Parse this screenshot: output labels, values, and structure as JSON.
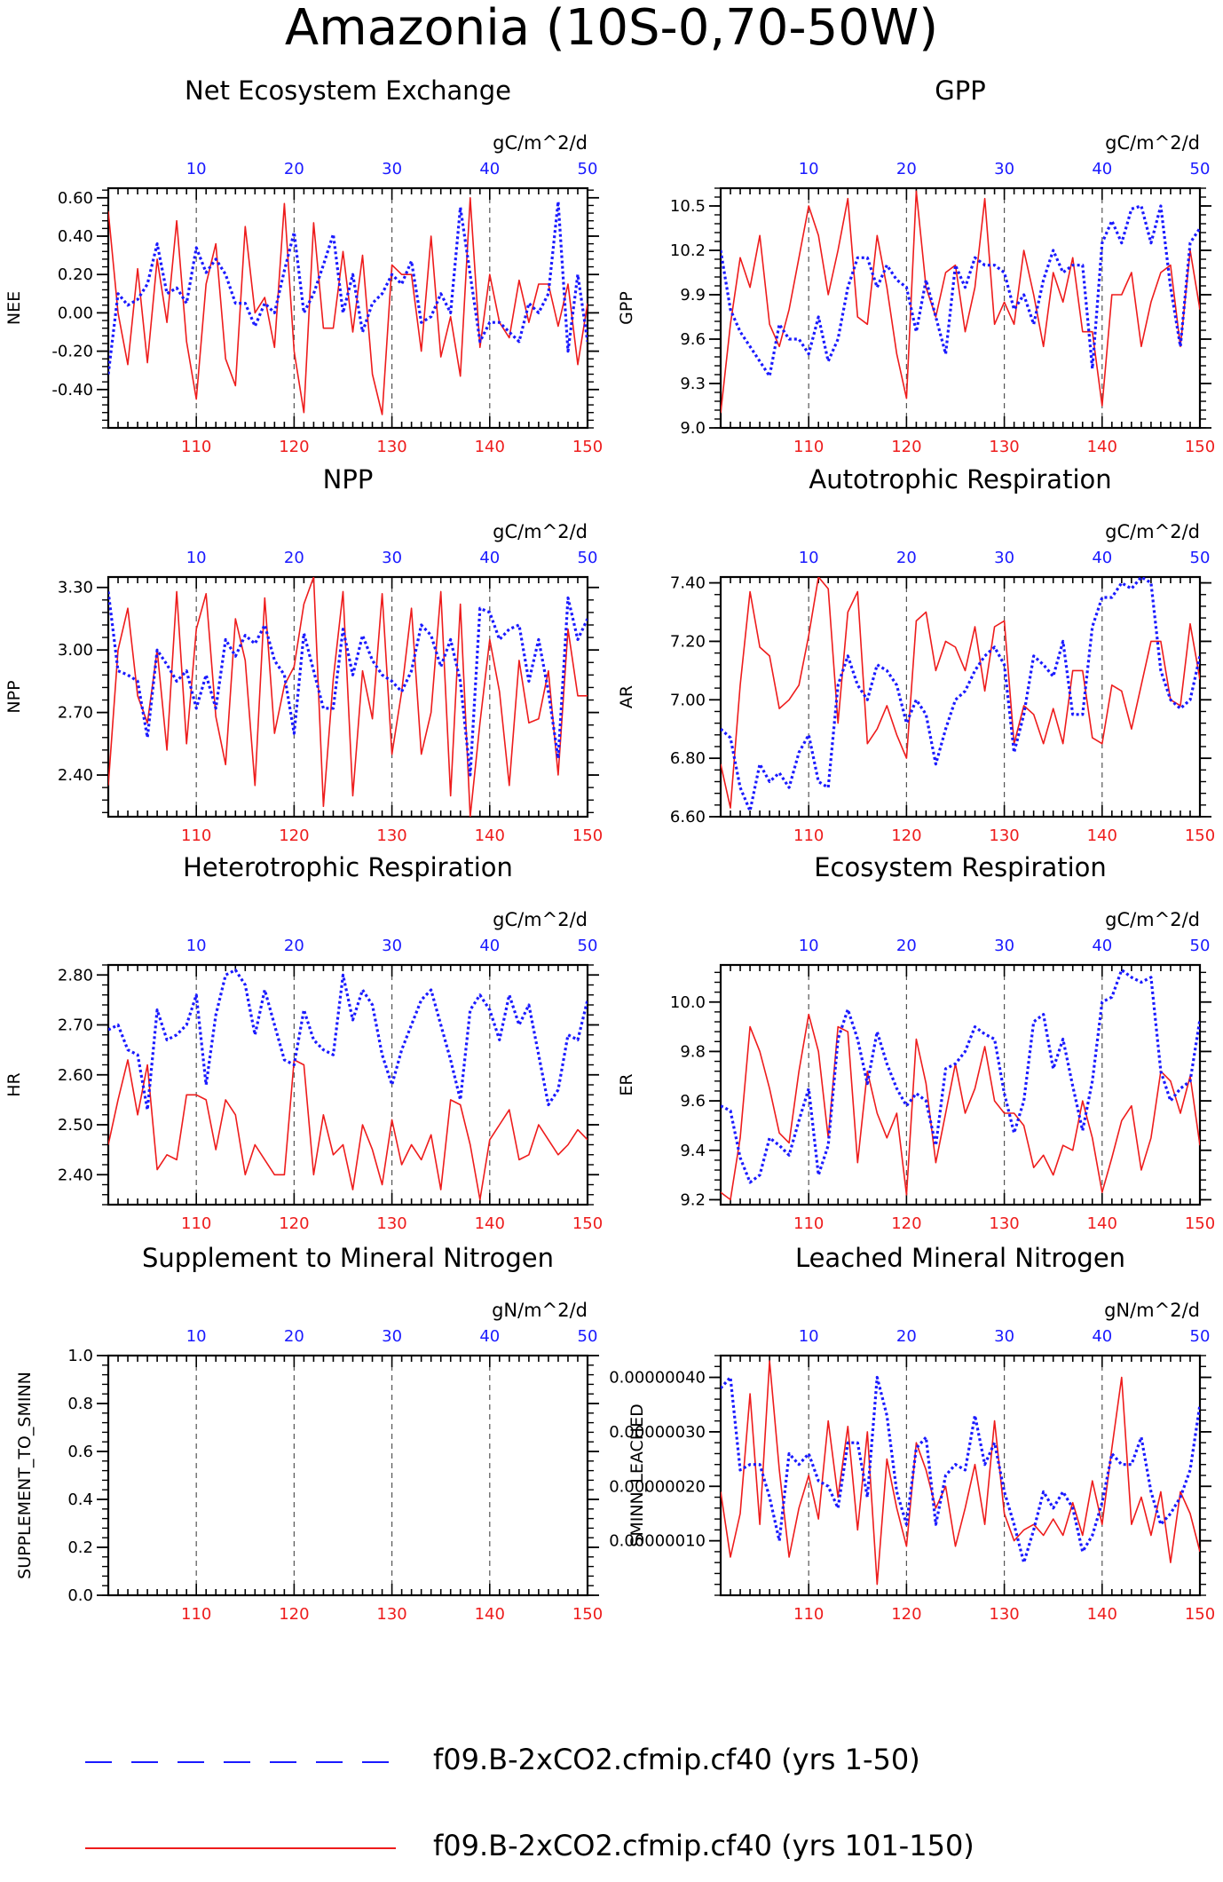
{
  "page_title": "Amazonia (10S-0,70-50W)",
  "colors": {
    "series_a": "#1a1aff",
    "series_b": "#ee1c1c",
    "axis": "#000000",
    "grid": "#555555"
  },
  "legend": {
    "items": [
      {
        "label": "f09.B-2xCO2.cfmip.cf40 (yrs 1-50)",
        "style": "dashed",
        "color": "#1a1aff"
      },
      {
        "label": "f09.B-2xCO2.cfmip.cf40 (yrs 101-150)",
        "style": "solid",
        "color": "#ee1c1c"
      }
    ]
  },
  "chart_data": [
    {
      "type": "line",
      "title": "Net Ecosystem Exchange",
      "ylabel": "NEE",
      "units": "gC/m^2/d",
      "ylim": [
        -0.6,
        0.65
      ],
      "yticks": [
        -0.4,
        -0.2,
        0.0,
        0.2,
        0.4,
        0.6
      ],
      "ytick_labels": [
        "-0.40",
        "-0.20",
        "0.00",
        "0.20",
        "0.40",
        "0.60"
      ],
      "x_bottom_ticks": [
        110,
        120,
        130,
        140,
        150
      ],
      "x_top_ticks": [
        10,
        20,
        30,
        40,
        50
      ],
      "xlim": [
        101,
        150
      ],
      "grid_x": [
        110,
        120,
        130,
        140
      ],
      "series": [
        {
          "values": [
            -0.32,
            0.1,
            0.04,
            0.07,
            0.15,
            0.36,
            0.1,
            0.13,
            0.05,
            0.34,
            0.21,
            0.28,
            0.2,
            0.05,
            0.05,
            -0.07,
            0.05,
            0.0,
            0.22,
            0.42,
            0.0,
            0.1,
            0.25,
            0.41,
            0.0,
            0.2,
            -0.1,
            0.05,
            0.1,
            0.2,
            0.15,
            0.27,
            -0.05,
            -0.02,
            0.1,
            0.0,
            0.55,
            0.2,
            -0.15,
            -0.05,
            -0.05,
            -0.1,
            -0.15,
            0.05,
            0.0,
            0.1,
            0.58,
            -0.2,
            0.2,
            -0.15
          ]
        },
        {
          "values": [
            0.53,
            0.0,
            -0.27,
            0.23,
            -0.26,
            0.28,
            -0.05,
            0.48,
            -0.15,
            -0.45,
            0.15,
            0.36,
            -0.24,
            -0.38,
            0.45,
            0.0,
            0.08,
            -0.18,
            0.57,
            -0.2,
            -0.52,
            0.47,
            -0.08,
            -0.08,
            0.32,
            -0.1,
            0.3,
            -0.32,
            -0.53,
            0.25,
            0.2,
            0.2,
            -0.2,
            0.4,
            -0.23,
            -0.02,
            -0.33,
            0.6,
            -0.18,
            0.2,
            -0.05,
            -0.13,
            0.17,
            -0.05,
            0.15,
            0.15,
            -0.07,
            0.15,
            -0.27,
            0.05
          ]
        }
      ]
    },
    {
      "type": "line",
      "title": "GPP",
      "ylabel": "GPP",
      "units": "gC/m^2/d",
      "ylim": [
        9.0,
        10.62
      ],
      "yticks": [
        9.0,
        9.3,
        9.6,
        9.9,
        10.2,
        10.5
      ],
      "ytick_labels": [
        "9.0",
        "9.3",
        "9.6",
        "9.9",
        "10.2",
        "10.5"
      ],
      "x_bottom_ticks": [
        110,
        120,
        130,
        140,
        150
      ],
      "x_top_ticks": [
        10,
        20,
        30,
        40,
        50
      ],
      "xlim": [
        101,
        150
      ],
      "grid_x": [
        110,
        120,
        130,
        140
      ],
      "series": [
        {
          "values": [
            10.2,
            9.8,
            9.65,
            9.55,
            9.45,
            9.35,
            9.7,
            9.6,
            9.6,
            9.5,
            9.75,
            9.45,
            9.6,
            9.95,
            10.15,
            10.15,
            9.95,
            10.1,
            10.0,
            9.95,
            9.65,
            10.0,
            9.75,
            9.5,
            10.1,
            9.95,
            10.15,
            10.1,
            10.1,
            10.05,
            9.8,
            9.9,
            9.7,
            10.0,
            10.2,
            10.05,
            10.1,
            10.1,
            9.4,
            10.25,
            10.4,
            10.25,
            10.48,
            10.5,
            10.25,
            10.5,
            9.95,
            9.55,
            10.25,
            10.35
          ]
        },
        {
          "values": [
            9.1,
            9.7,
            10.15,
            9.95,
            10.3,
            9.7,
            9.55,
            9.8,
            10.15,
            10.5,
            10.3,
            9.9,
            10.2,
            10.55,
            9.75,
            9.7,
            10.3,
            9.95,
            9.5,
            9.2,
            10.6,
            9.95,
            9.75,
            10.05,
            10.1,
            9.65,
            9.95,
            10.55,
            9.7,
            9.85,
            9.7,
            10.2,
            9.9,
            9.55,
            10.05,
            9.85,
            10.15,
            9.65,
            9.65,
            9.15,
            9.9,
            9.9,
            10.05,
            9.55,
            9.85,
            10.05,
            10.1,
            9.55,
            10.2,
            9.8
          ]
        }
      ]
    },
    {
      "type": "line",
      "title": "NPP",
      "ylabel": "NPP",
      "units": "gC/m^2/d",
      "ylim": [
        2.2,
        3.35
      ],
      "yticks": [
        2.4,
        2.7,
        3.0,
        3.3
      ],
      "ytick_labels": [
        "2.40",
        "2.70",
        "3.00",
        "3.30"
      ],
      "x_bottom_ticks": [
        110,
        120,
        130,
        140,
        150
      ],
      "x_top_ticks": [
        10,
        20,
        30,
        40,
        50
      ],
      "xlim": [
        101,
        150
      ],
      "grid_x": [
        110,
        120,
        130,
        140
      ],
      "series": [
        {
          "values": [
            3.28,
            2.9,
            2.88,
            2.85,
            2.58,
            3.0,
            2.93,
            2.85,
            2.9,
            2.72,
            2.88,
            2.72,
            3.05,
            2.97,
            3.07,
            3.03,
            3.12,
            2.95,
            2.88,
            2.6,
            3.08,
            2.9,
            2.72,
            2.72,
            3.1,
            2.88,
            3.07,
            2.95,
            2.88,
            2.85,
            2.8,
            2.9,
            3.12,
            3.07,
            2.92,
            3.05,
            2.85,
            2.4,
            3.2,
            3.18,
            3.05,
            3.1,
            3.12,
            2.85,
            3.05,
            2.8,
            2.48,
            3.25,
            3.05,
            3.15
          ]
        },
        {
          "values": [
            2.35,
            3.0,
            3.2,
            2.78,
            2.65,
            3.0,
            2.52,
            3.28,
            2.55,
            3.1,
            3.27,
            2.68,
            2.45,
            3.15,
            2.95,
            2.35,
            3.25,
            2.6,
            2.83,
            2.92,
            3.22,
            3.35,
            2.25,
            2.86,
            3.28,
            2.3,
            2.9,
            2.67,
            3.27,
            2.5,
            2.8,
            3.2,
            2.5,
            2.7,
            3.28,
            2.3,
            3.22,
            2.2,
            2.65,
            3.05,
            2.8,
            2.35,
            2.95,
            2.65,
            2.67,
            2.9,
            2.4,
            3.1,
            2.78,
            2.78
          ]
        }
      ]
    },
    {
      "type": "line",
      "title": "Autotrophic Respiration",
      "ylabel": "AR",
      "units": "gC/m^2/d",
      "ylim": [
        6.6,
        7.42
      ],
      "yticks": [
        6.6,
        6.8,
        7.0,
        7.2,
        7.4
      ],
      "ytick_labels": [
        "6.60",
        "6.80",
        "7.00",
        "7.20",
        "7.40"
      ],
      "x_bottom_ticks": [
        110,
        120,
        130,
        140,
        150
      ],
      "x_top_ticks": [
        10,
        20,
        30,
        40,
        50
      ],
      "xlim": [
        101,
        150
      ],
      "grid_x": [
        110,
        120,
        130,
        140
      ],
      "series": [
        {
          "values": [
            6.9,
            6.87,
            6.7,
            6.62,
            6.78,
            6.72,
            6.75,
            6.7,
            6.82,
            6.88,
            6.72,
            6.7,
            7.05,
            7.15,
            7.05,
            7.0,
            7.12,
            7.1,
            7.05,
            6.92,
            7.0,
            6.95,
            6.78,
            6.9,
            7.0,
            7.03,
            7.1,
            7.15,
            7.18,
            7.12,
            6.82,
            6.95,
            7.15,
            7.12,
            7.08,
            7.2,
            6.95,
            6.95,
            7.25,
            7.35,
            7.35,
            7.4,
            7.38,
            7.42,
            7.4,
            7.1,
            7.0,
            6.97,
            7.0,
            7.15
          ]
        },
        {
          "values": [
            6.78,
            6.63,
            7.05,
            7.37,
            7.18,
            7.15,
            6.97,
            7.0,
            7.05,
            7.22,
            7.42,
            7.38,
            6.92,
            7.3,
            7.37,
            6.85,
            6.9,
            6.98,
            6.88,
            6.8,
            7.27,
            7.3,
            7.1,
            7.2,
            7.18,
            7.1,
            7.25,
            7.03,
            7.25,
            7.27,
            6.85,
            6.98,
            6.95,
            6.85,
            6.97,
            6.85,
            7.1,
            7.1,
            6.87,
            6.85,
            7.05,
            7.03,
            6.9,
            7.05,
            7.2,
            7.2,
            7.0,
            6.98,
            7.26,
            7.07
          ]
        }
      ]
    },
    {
      "type": "line",
      "title": "Heterotrophic Respiration",
      "ylabel": "HR",
      "units": "gC/m^2/d",
      "ylim": [
        2.34,
        2.82
      ],
      "yticks": [
        2.4,
        2.5,
        2.6,
        2.7,
        2.8
      ],
      "ytick_labels": [
        "2.40",
        "2.50",
        "2.60",
        "2.70",
        "2.80"
      ],
      "x_bottom_ticks": [
        110,
        120,
        130,
        140,
        150
      ],
      "x_top_ticks": [
        10,
        20,
        30,
        40,
        50
      ],
      "xlim": [
        101,
        150
      ],
      "grid_x": [
        110,
        120,
        130,
        140
      ],
      "series": [
        {
          "values": [
            2.69,
            2.7,
            2.65,
            2.64,
            2.53,
            2.73,
            2.67,
            2.68,
            2.7,
            2.76,
            2.58,
            2.72,
            2.8,
            2.81,
            2.78,
            2.68,
            2.77,
            2.7,
            2.63,
            2.62,
            2.73,
            2.67,
            2.65,
            2.64,
            2.8,
            2.71,
            2.77,
            2.74,
            2.64,
            2.58,
            2.65,
            2.7,
            2.75,
            2.77,
            2.7,
            2.63,
            2.55,
            2.73,
            2.76,
            2.73,
            2.67,
            2.76,
            2.7,
            2.74,
            2.64,
            2.54,
            2.57,
            2.68,
            2.67,
            2.75
          ]
        },
        {
          "values": [
            2.46,
            2.55,
            2.63,
            2.52,
            2.62,
            2.41,
            2.44,
            2.43,
            2.56,
            2.56,
            2.55,
            2.45,
            2.55,
            2.52,
            2.4,
            2.46,
            2.43,
            2.4,
            2.4,
            2.63,
            2.62,
            2.4,
            2.52,
            2.44,
            2.46,
            2.37,
            2.5,
            2.45,
            2.38,
            2.51,
            2.42,
            2.46,
            2.43,
            2.48,
            2.37,
            2.55,
            2.54,
            2.46,
            2.35,
            2.47,
            2.5,
            2.53,
            2.43,
            2.44,
            2.5,
            2.47,
            2.44,
            2.46,
            2.49,
            2.47
          ]
        }
      ]
    },
    {
      "type": "line",
      "title": "Ecosystem Respiration",
      "ylabel": "ER",
      "units": "gC/m^2/d",
      "ylim": [
        9.18,
        10.15
      ],
      "yticks": [
        9.2,
        9.4,
        9.6,
        9.8,
        10.0
      ],
      "ytick_labels": [
        "9.2",
        "9.4",
        "9.6",
        "9.8",
        "10.0"
      ],
      "x_bottom_ticks": [
        110,
        120,
        130,
        140,
        150
      ],
      "x_top_ticks": [
        10,
        20,
        30,
        40,
        50
      ],
      "xlim": [
        101,
        150
      ],
      "grid_x": [
        110,
        120,
        130,
        140
      ],
      "series": [
        {
          "values": [
            9.58,
            9.56,
            9.37,
            9.27,
            9.3,
            9.45,
            9.42,
            9.38,
            9.52,
            9.65,
            9.3,
            9.42,
            9.85,
            9.97,
            9.85,
            9.67,
            9.88,
            9.75,
            9.65,
            9.58,
            9.63,
            9.6,
            9.42,
            9.73,
            9.75,
            9.8,
            9.9,
            9.87,
            9.85,
            9.63,
            9.47,
            9.6,
            9.92,
            9.95,
            9.73,
            9.85,
            9.66,
            9.48,
            9.68,
            10.0,
            10.02,
            10.13,
            10.1,
            10.08,
            10.1,
            9.72,
            9.6,
            9.65,
            9.68,
            9.93
          ]
        },
        {
          "values": [
            9.23,
            9.2,
            9.45,
            9.9,
            9.8,
            9.65,
            9.47,
            9.43,
            9.72,
            9.95,
            9.8,
            9.45,
            9.9,
            9.88,
            9.35,
            9.72,
            9.55,
            9.45,
            9.55,
            9.22,
            9.85,
            9.67,
            9.35,
            9.55,
            9.75,
            9.55,
            9.65,
            9.82,
            9.6,
            9.55,
            9.55,
            9.5,
            9.33,
            9.38,
            9.3,
            9.42,
            9.4,
            9.6,
            9.45,
            9.23,
            9.37,
            9.52,
            9.58,
            9.32,
            9.45,
            9.72,
            9.68,
            9.55,
            9.7,
            9.42
          ]
        }
      ]
    },
    {
      "type": "line",
      "title": "Supplement to Mineral Nitrogen",
      "ylabel": "SUPPLEMENT_TO_SMINN",
      "units": "gN/m^2/d",
      "ylim": [
        0.0,
        1.0
      ],
      "yticks": [
        0.0,
        0.2,
        0.4,
        0.6,
        0.8,
        1.0
      ],
      "ytick_labels": [
        "0.0",
        "0.2",
        "0.4",
        "0.6",
        "0.8",
        "1.0"
      ],
      "x_bottom_ticks": [
        110,
        120,
        130,
        140,
        150
      ],
      "x_top_ticks": [
        10,
        20,
        30,
        40,
        50
      ],
      "xlim": [
        101,
        150
      ],
      "grid_x": [
        110,
        120,
        130,
        140
      ],
      "series": [
        {
          "values": []
        },
        {
          "values": []
        }
      ]
    },
    {
      "type": "line",
      "title": "Leached Mineral Nitrogen",
      "ylabel": "SMINN_LEACHED",
      "units": "gN/m^2/d",
      "ylim": [
        0.0,
        4.4e-07
      ],
      "yticks": [
        1e-07,
        2e-07,
        3e-07,
        4e-07
      ],
      "ytick_labels": [
        "0.00000010",
        "0.00000020",
        "0.00000030",
        "0.00000040"
      ],
      "x_bottom_ticks": [
        110,
        120,
        130,
        140,
        150
      ],
      "x_top_ticks": [
        10,
        20,
        30,
        40,
        50
      ],
      "xlim": [
        101,
        150
      ],
      "grid_x": [
        110,
        120,
        130,
        140
      ],
      "series": [
        {
          "values": [
            3.8e-07,
            4e-07,
            2.3e-07,
            2.4e-07,
            2.4e-07,
            1.8e-07,
            1e-07,
            2.6e-07,
            2.4e-07,
            2.6e-07,
            2.1e-07,
            2e-07,
            1.6e-07,
            2.8e-07,
            2.8e-07,
            1.8e-07,
            4e-07,
            3.3e-07,
            1.9e-07,
            1.3e-07,
            2.7e-07,
            2.9e-07,
            1.3e-07,
            2.2e-07,
            2.4e-07,
            2.3e-07,
            3.3e-07,
            2.4e-07,
            2.8e-07,
            1.9e-07,
            1.3e-07,
            6e-08,
            1.2e-07,
            1.9e-07,
            1.6e-07,
            1.9e-07,
            1.6e-07,
            8e-08,
            1.1e-07,
            1.7e-07,
            2.6e-07,
            2.4e-07,
            2.4e-07,
            2.9e-07,
            1.9e-07,
            1.3e-07,
            1.5e-07,
            1.8e-07,
            2.3e-07,
            3.5e-07
          ]
        },
        {
          "values": [
            1.9e-07,
            7e-08,
            1.5e-07,
            3.7e-07,
            1.3e-07,
            4.3e-07,
            2.3e-07,
            7e-08,
            1.6e-07,
            2.2e-07,
            1.4e-07,
            3.2e-07,
            1.8e-07,
            3.1e-07,
            1.2e-07,
            3e-07,
            2e-08,
            2.5e-07,
            1.6e-07,
            9e-08,
            2.8e-07,
            2.3e-07,
            1.6e-07,
            2e-07,
            9e-08,
            1.6e-07,
            2.4e-07,
            1.3e-07,
            3.2e-07,
            1.5e-07,
            1e-07,
            1.2e-07,
            1.3e-07,
            1.1e-07,
            1.4e-07,
            1.1e-07,
            1.7e-07,
            1.1e-07,
            2.1e-07,
            1.3e-07,
            2.7e-07,
            4e-07,
            1.3e-07,
            1.8e-07,
            1.1e-07,
            1.9e-07,
            6e-08,
            1.9e-07,
            1.5e-07,
            8e-08
          ]
        }
      ]
    }
  ]
}
